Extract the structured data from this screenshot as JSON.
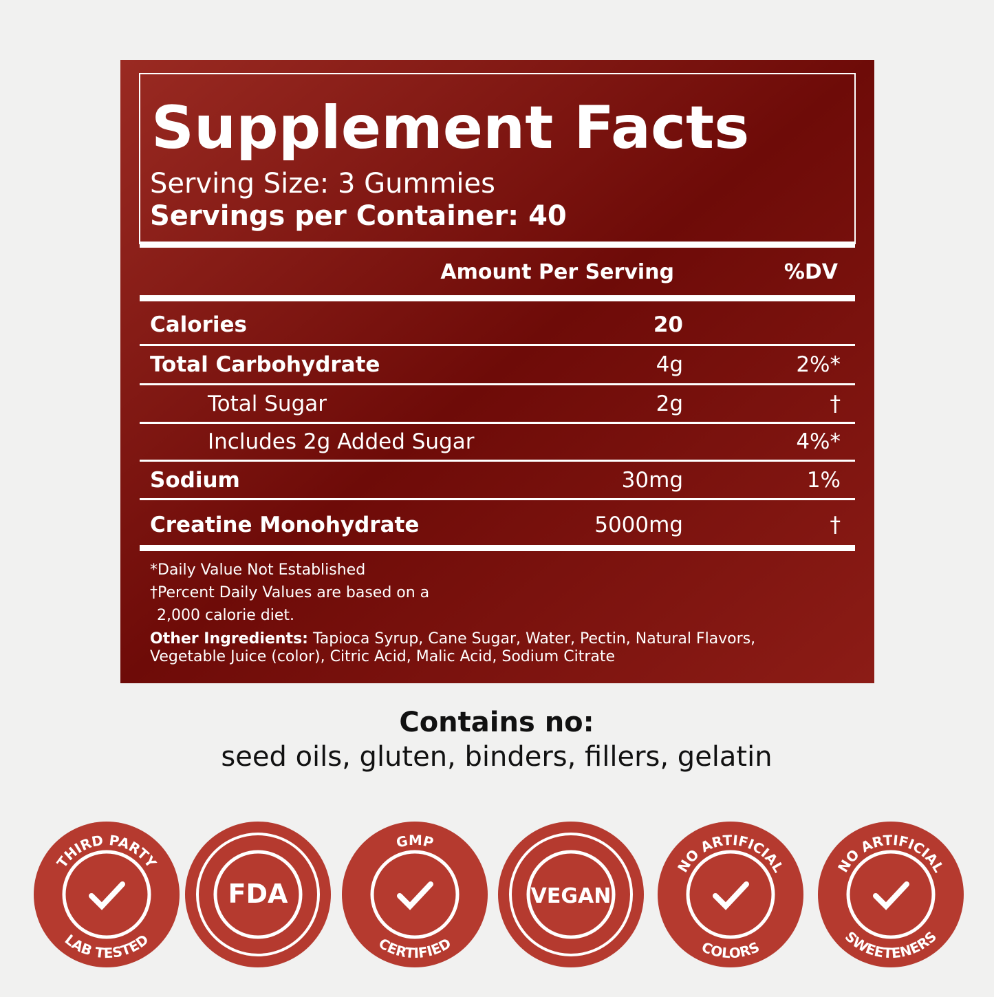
{
  "facts": {
    "title": "Supplement Facts",
    "serving_size": "Serving Size: 3 Gummies",
    "servings_per_container": "Servings per Container: 40",
    "header": {
      "amount": "Amount Per Serving",
      "dv": "%DV"
    },
    "rows": [
      {
        "name": "Calories",
        "amount": "20",
        "bold": true
      },
      {
        "name": "Total Carbohydrate",
        "amount": "4g",
        "dv": "2%*",
        "bold": true
      },
      {
        "name": "Total Sugar",
        "amount": "2g",
        "dv": "†"
      },
      {
        "name": "Includes 2g Added Sugar",
        "dv": "4%*"
      },
      {
        "name": "Sodium",
        "amount": "30mg",
        "dv": "1%",
        "bold": true
      },
      {
        "name": "Creatine Monohydrate",
        "amount": "5000mg",
        "dv": "†",
        "bold": true
      }
    ],
    "footnotes": [
      "*Daily Value Not Established",
      "†Percent Daily Values are based on a",
      "2,000 calorie diet."
    ],
    "other_ingredients": {
      "label": "Other Ingredients:",
      "text_1": "Tapioca Syrup, Cane Sugar, Water, Pectin, Natural Flavors,",
      "text_2": "Vegetable Juice (color), Citric Acid, Malic Acid, Sodium Citrate"
    }
  },
  "contains": {
    "title": "Contains no:",
    "text": "seed oils, gluten, binders, fillers, gelatin"
  },
  "badges": [
    {
      "top": "THIRD PARTY",
      "bottom": "LAB TESTED"
    },
    {
      "center": "FDA"
    },
    {
      "top": "GMP",
      "bottom": "CERTIFIED"
    },
    {
      "center": "VEGAN"
    },
    {
      "top": "NO ARTIFICIAL",
      "bottom": "COLORS"
    },
    {
      "top": "NO ARTIFICIAL",
      "bottom": "SWEETENERS"
    }
  ]
}
